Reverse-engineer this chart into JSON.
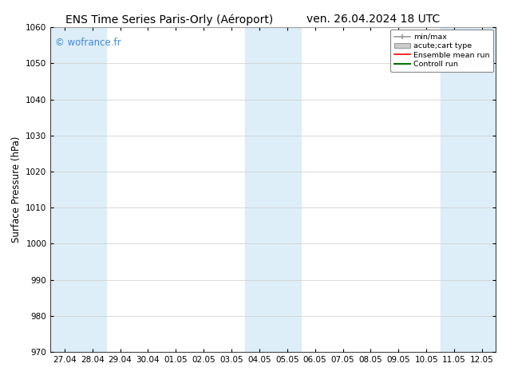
{
  "title_left": "ENS Time Series Paris-Orly (Aéroport)",
  "title_right": "ven. 26.04.2024 18 UTC",
  "ylabel": "Surface Pressure (hPa)",
  "ylim": [
    970,
    1060
  ],
  "yticks": [
    970,
    980,
    990,
    1000,
    1010,
    1020,
    1030,
    1040,
    1050,
    1060
  ],
  "xtick_labels": [
    "27.04",
    "28.04",
    "29.04",
    "30.04",
    "01.05",
    "02.05",
    "03.05",
    "04.05",
    "05.05",
    "06.05",
    "07.05",
    "08.05",
    "09.05",
    "10.05",
    "11.05",
    "12.05"
  ],
  "watermark": "© wofrance.fr",
  "watermark_color": "#4488dd",
  "shaded_band_color": "#ddeef8",
  "legend_labels": [
    "min/max",
    "acute;cart type",
    "Ensemble mean run",
    "Controll run"
  ],
  "legend_colors_line": [
    "#999999",
    "#bbbbbb",
    "#ff0000",
    "#007700"
  ],
  "background_color": "#ffffff",
  "plot_bg_color": "#ffffff",
  "title_fontsize": 10,
  "tick_fontsize": 7.5,
  "ylabel_fontsize": 8.5,
  "figsize": [
    6.34,
    4.9
  ],
  "dpi": 100
}
